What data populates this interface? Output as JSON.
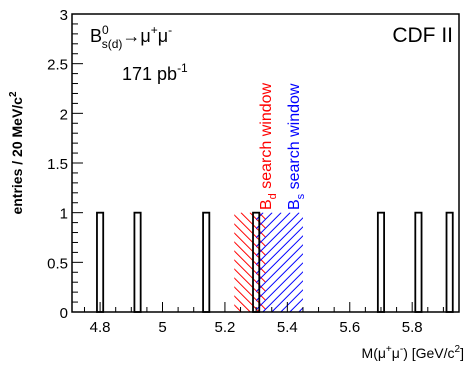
{
  "chart_data": {
    "type": "bar",
    "title": "CDF II",
    "annotations": {
      "process_main": "B",
      "process_sup": "0",
      "process_sub": "s(d)",
      "process_arrow": "→μ",
      "process_mu1_sup": "+",
      "process_mu2": "μ",
      "process_mu2_sup": "-",
      "luminosity_main": "171 pb",
      "luminosity_sup": "-1",
      "bd_window_main": "B",
      "bd_window_sub": "d",
      "bd_window_rest": " search window",
      "bs_window_main": "B",
      "bs_window_sub": "s",
      "bs_window_rest": " search window"
    },
    "ylabel_main": "entries / 20 MeV/c",
    "ylabel_sup": "2",
    "xlabel_pre": "M(μ",
    "xlabel_sup1": "+",
    "xlabel_mid": "μ",
    "xlabel_sup2": "-",
    "xlabel_post": ")  [GeV/c",
    "xlabel_sup3": "2",
    "xlabel_end": "]",
    "xlim": [
      4.71,
      5.95
    ],
    "ylim": [
      0,
      3
    ],
    "x_ticks": [
      "4.8",
      "5",
      "5.2",
      "5.4",
      "5.6",
      "5.8"
    ],
    "x_tick_values": [
      4.8,
      5.0,
      5.2,
      5.4,
      5.6,
      5.8
    ],
    "y_ticks": [
      "0",
      "0.5",
      "1",
      "1.5",
      "2",
      "2.5",
      "3"
    ],
    "y_tick_values": [
      0,
      0.5,
      1,
      1.5,
      2,
      2.5,
      3
    ],
    "bin_width_gev": 0.02,
    "bins": [
      {
        "x": 4.8,
        "value": 1
      },
      {
        "x": 4.92,
        "value": 1
      },
      {
        "x": 5.14,
        "value": 1
      },
      {
        "x": 5.3,
        "value": 1
      },
      {
        "x": 5.7,
        "value": 1
      },
      {
        "x": 5.82,
        "value": 1
      },
      {
        "x": 5.92,
        "value": 1
      }
    ],
    "windows": [
      {
        "name": "Bd search window",
        "x_range": [
          5.23,
          5.33
        ],
        "color": "#ff0000",
        "y_top": 1.0
      },
      {
        "name": "Bs search window",
        "x_range": [
          5.3,
          5.45
        ],
        "color": "#0000ff",
        "y_top": 1.0
      }
    ],
    "grid": false
  }
}
